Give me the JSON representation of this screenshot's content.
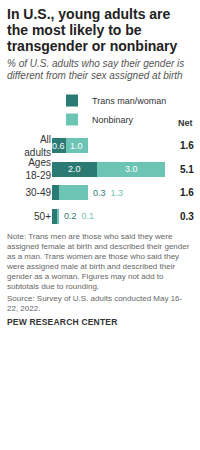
{
  "chart_data": {
    "type": "bar",
    "orientation": "horizontal",
    "stacked": true,
    "title": "In U.S., young adults are the most likely to be transgender or nonbinary",
    "subtitle": "% of U.S. adults who say their gender is different from their sex assigned at birth",
    "categories": [
      "All adults",
      "Ages 18-29",
      "30-49",
      "50+"
    ],
    "series": [
      {
        "name": "Trans man/woman",
        "color": "#2b7a73",
        "values": [
          0.6,
          2.0,
          0.3,
          0.2
        ],
        "value_labels": [
          "0.6",
          "2.0",
          "0.3",
          "0.2"
        ]
      },
      {
        "name": "Nonbinary",
        "color": "#6cc4b5",
        "values": [
          1.0,
          3.0,
          1.3,
          0.1
        ],
        "value_labels": [
          "1.0",
          "3.0",
          "1.3",
          "0.1"
        ]
      }
    ],
    "net": {
      "label": "Net",
      "values": [
        1.6,
        5.1,
        1.6,
        0.3
      ]
    },
    "xlim": [
      0,
      5.2
    ],
    "data_labels": true,
    "tick_labels": "y",
    "grid": false,
    "legend": "top",
    "note": "Note: Trans men are those who said they were assigned female at birth and described their gender as a man. Trans women are those who said they were assigned male at birth and described their gender as a woman. Figures may not add to subtotals due to rounding.",
    "source": "Source: Survey of U.S. adults conducted May 16-22, 2022.",
    "credit": "PEW RESEARCH CENTER"
  }
}
